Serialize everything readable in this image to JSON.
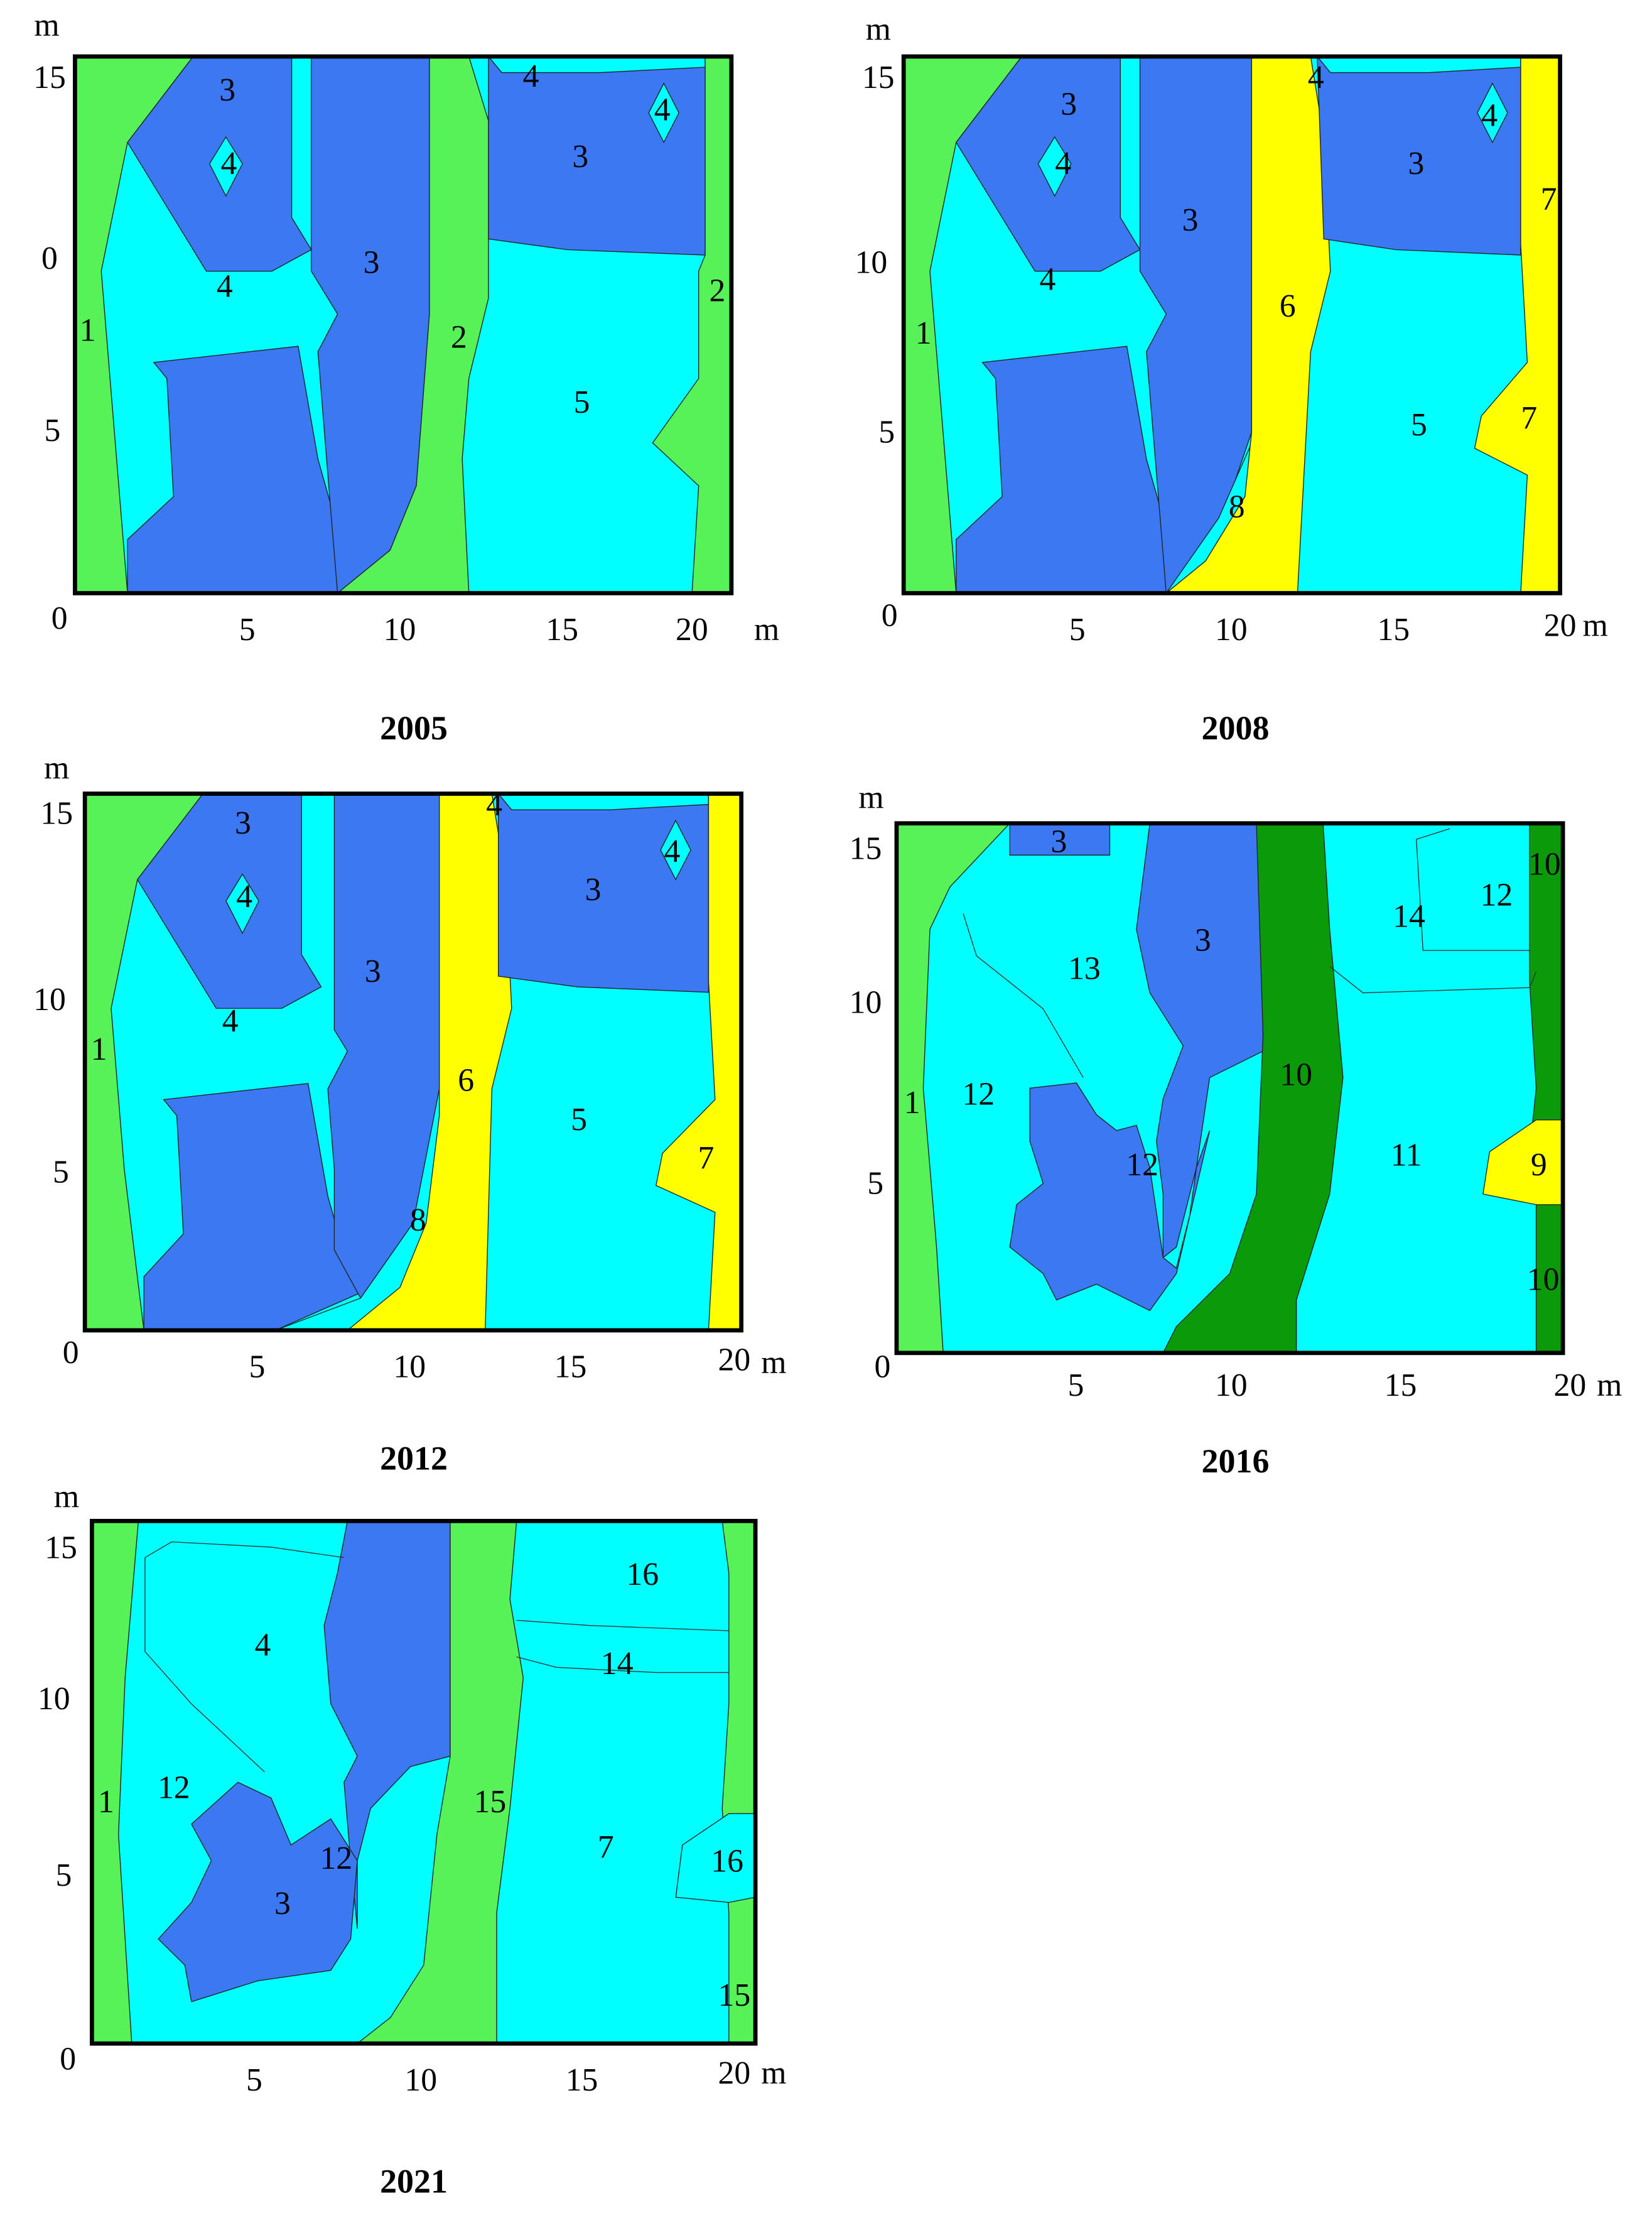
{
  "panels": [
    {
      "caption": "2005",
      "y_unit": "m",
      "y_ticks": [
        "15",
        "0",
        "5"
      ],
      "origin": "0",
      "x_ticks": [
        "5",
        "10",
        "15",
        "20"
      ],
      "x_unit": "m",
      "regions": [
        "3",
        "4",
        "4",
        "3",
        "1",
        "2",
        "4",
        "4",
        "3",
        "2",
        "5"
      ]
    },
    {
      "caption": "2008",
      "y_unit": "m",
      "y_ticks": [
        "15",
        "10",
        "5"
      ],
      "origin": "0",
      "x_ticks": [
        "5",
        "10",
        "15",
        "20"
      ],
      "x_unit": "m",
      "regions": [
        "3",
        "4",
        "4",
        "3",
        "1",
        "8",
        "6",
        "4",
        "4",
        "3",
        "7",
        "5",
        "7"
      ]
    },
    {
      "caption": "2012",
      "y_unit": "m",
      "y_ticks": [
        "15",
        "10",
        "5"
      ],
      "origin": "0",
      "x_ticks": [
        "5",
        "10",
        "15",
        "20"
      ],
      "x_unit": "m",
      "regions": [
        "3",
        "4",
        "4",
        "3",
        "1",
        "8",
        "6",
        "4",
        "4",
        "3",
        "5",
        "7"
      ]
    },
    {
      "caption": "2016",
      "y_unit": "m",
      "y_ticks": [
        "15",
        "10",
        "5"
      ],
      "origin": "0",
      "x_ticks": [
        "5",
        "10",
        "15",
        "20"
      ],
      "x_unit": "m",
      "regions": [
        "3",
        "13",
        "3",
        "12",
        "1",
        "12",
        "10",
        "14",
        "12",
        "10",
        "11",
        "9",
        "10"
      ]
    },
    {
      "caption": "2021",
      "y_unit": "m",
      "y_ticks": [
        "15",
        "10",
        "5"
      ],
      "origin": "0",
      "x_ticks": [
        "5",
        "10",
        "15",
        "20"
      ],
      "x_unit": "m",
      "regions": [
        "4",
        "12",
        "1",
        "3",
        "12",
        "15",
        "16",
        "14",
        "7",
        "16",
        "15"
      ]
    }
  ]
}
